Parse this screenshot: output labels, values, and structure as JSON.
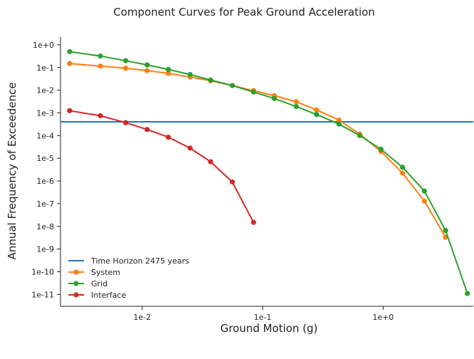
{
  "chart_data": {
    "type": "line",
    "title": "Component Curves for Peak Ground Acceleration",
    "xlabel": "Ground Motion (g)",
    "ylabel": "Annual Frequency of Exceedence",
    "x_scale": "log",
    "y_scale": "log",
    "xlim": [
      0.0021,
      5.6
    ],
    "ylim": [
      3e-12,
      2.2
    ],
    "x_ticks": [
      {
        "value": 0.01,
        "label": "1e-2"
      },
      {
        "value": 0.1,
        "label": "1e-1"
      },
      {
        "value": 1,
        "label": "1e+0"
      }
    ],
    "y_ticks": [
      {
        "value": 1,
        "label": "1e+0"
      },
      {
        "value": 0.1,
        "label": "1e-1"
      },
      {
        "value": 0.01,
        "label": "1e-2"
      },
      {
        "value": 0.001,
        "label": "1e-3"
      },
      {
        "value": 0.0001,
        "label": "1e-4"
      },
      {
        "value": 1e-05,
        "label": "1e-5"
      },
      {
        "value": 1e-06,
        "label": "1e-6"
      },
      {
        "value": 1e-07,
        "label": "1e-7"
      },
      {
        "value": 1e-08,
        "label": "1e-8"
      },
      {
        "value": 1e-09,
        "label": "1e-9"
      },
      {
        "value": 1e-10,
        "label": "1e-10"
      },
      {
        "value": 1e-11,
        "label": "1e-11"
      }
    ],
    "grid": false,
    "legend_position": "bottom-left",
    "hline": {
      "name": "Time Horizon 2475 years",
      "y": 0.000404,
      "color": "#1f77b4"
    },
    "series": [
      {
        "name": "System",
        "color": "#ff7f0e",
        "x": [
          0.0025,
          0.0045,
          0.0073,
          0.011,
          0.0165,
          0.025,
          0.037,
          0.056,
          0.084,
          0.125,
          0.19,
          0.28,
          0.43,
          0.64,
          0.96,
          1.45,
          2.2,
          3.3
        ],
        "y": [
          0.15,
          0.115,
          0.093,
          0.073,
          0.055,
          0.038,
          0.026,
          0.016,
          0.0095,
          0.0057,
          0.0031,
          0.00135,
          0.00048,
          0.000115,
          2e-05,
          2.2e-06,
          1.3e-07,
          3.3e-09
        ]
      },
      {
        "name": "Grid",
        "color": "#2ca02c",
        "x": [
          0.0025,
          0.0045,
          0.0073,
          0.011,
          0.0165,
          0.025,
          0.037,
          0.056,
          0.084,
          0.125,
          0.19,
          0.28,
          0.43,
          0.64,
          0.96,
          1.45,
          2.2,
          3.3,
          5.0
        ],
        "y": [
          0.5,
          0.32,
          0.2,
          0.13,
          0.082,
          0.049,
          0.028,
          0.016,
          0.0083,
          0.0043,
          0.0019,
          0.00085,
          0.00032,
          0.0001,
          2.5e-05,
          4e-06,
          3.6e-07,
          6.5e-09,
          1.1e-11
        ]
      },
      {
        "name": "Interface",
        "color": "#d62728",
        "x": [
          0.0025,
          0.0045,
          0.0073,
          0.011,
          0.0165,
          0.025,
          0.037,
          0.056,
          0.084
        ],
        "y": [
          0.00125,
          0.00075,
          0.00037,
          0.000185,
          8.5e-05,
          2.8e-05,
          7e-06,
          9e-07,
          1.5e-08
        ]
      }
    ]
  }
}
